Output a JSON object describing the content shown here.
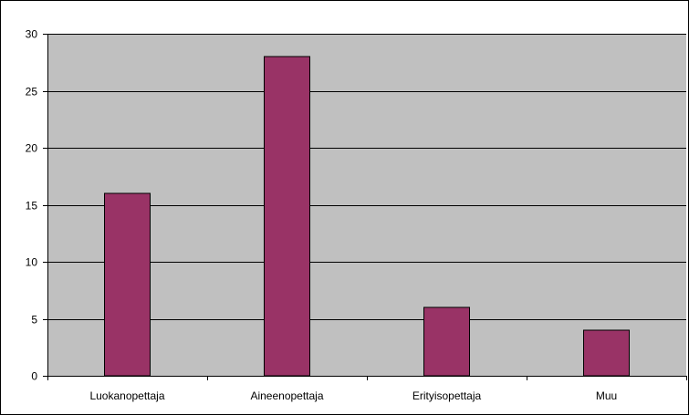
{
  "chart_data": {
    "type": "bar",
    "categories": [
      "Luokanopettaja",
      "Aineenopettaja",
      "Erityisopettaja",
      "Muu"
    ],
    "values": [
      16,
      28,
      6,
      4
    ],
    "title": "",
    "xlabel": "",
    "ylabel": "",
    "ylim": [
      0,
      30
    ],
    "yticks": [
      0,
      5,
      10,
      15,
      20,
      25,
      30
    ],
    "grid": true,
    "legend": "none",
    "colors": {
      "bar_fill": "#993366",
      "bar_stroke": "#000000",
      "plot_background": "#c0c0c0",
      "gridline": "#000000",
      "frame": "#000000"
    }
  }
}
